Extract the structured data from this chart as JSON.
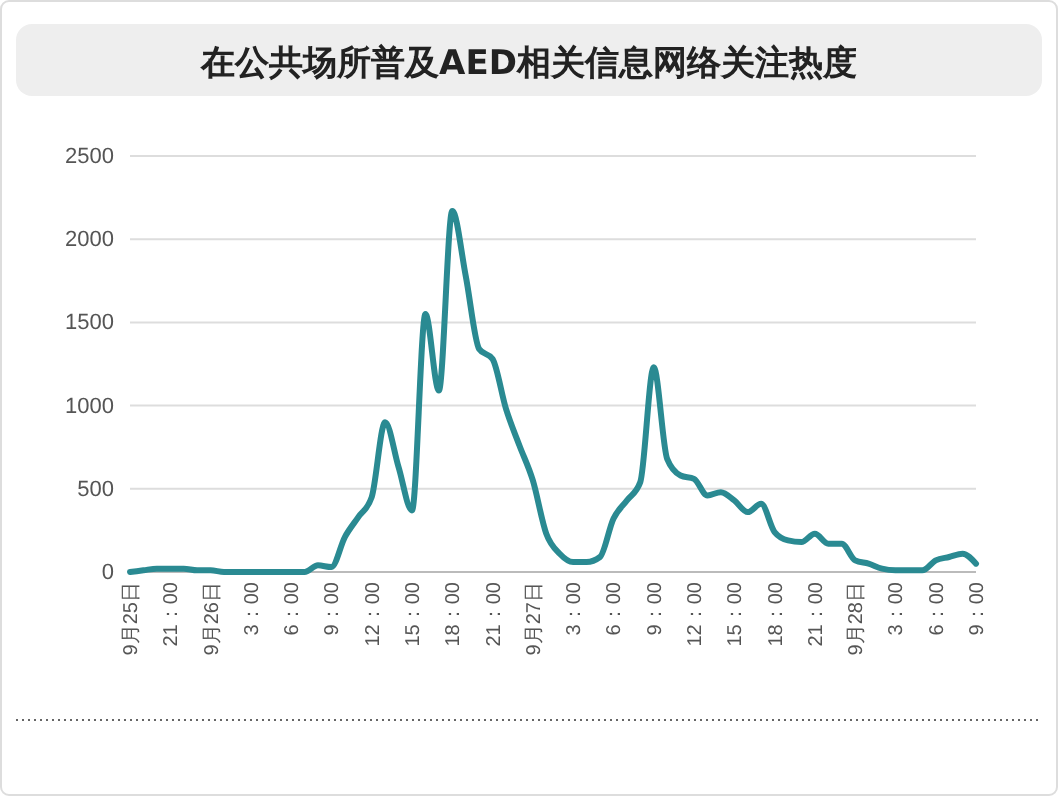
{
  "chart_data": {
    "type": "line",
    "title": "在公共场所普及AED相关信息网络关注热度",
    "categories": [
      "9月25日",
      null,
      null,
      "21：00",
      null,
      null,
      "9月26日",
      null,
      null,
      "3：00",
      null,
      null,
      "6：00",
      null,
      null,
      "9：00",
      null,
      null,
      "12：00",
      null,
      null,
      "15：00",
      null,
      null,
      "18：00",
      null,
      null,
      "21：00",
      null,
      null,
      "9月27日",
      null,
      null,
      "3：00",
      null,
      null,
      "6：00",
      null,
      null,
      "9：00",
      null,
      null,
      "12：00",
      null,
      null,
      "15：00",
      null,
      null,
      "18：00",
      null,
      null,
      "21：00",
      null,
      null,
      "9月28日",
      null,
      null,
      "3：00",
      null,
      null,
      "6：00",
      null,
      null,
      "9：00"
    ],
    "series": [
      {
        "color": "#2a8a92",
        "values": [
          0,
          10,
          20,
          20,
          20,
          10,
          10,
          0,
          0,
          0,
          0,
          0,
          0,
          0,
          40,
          30,
          210,
          330,
          450,
          900,
          630,
          370,
          1550,
          1090,
          2170,
          1780,
          1340,
          1280,
          980,
          760,
          550,
          230,
          110,
          60,
          60,
          90,
          320,
          430,
          540,
          1230,
          680,
          580,
          560,
          460,
          480,
          430,
          360,
          410,
          240,
          190,
          180,
          230,
          170,
          170,
          70,
          50,
          20,
          10,
          10,
          10,
          70,
          90,
          110,
          50
        ]
      }
    ],
    "ylim": [
      0,
      2500
    ],
    "yticks": [
      0,
      500,
      1000,
      1500,
      2000,
      2500
    ],
    "grid": "y",
    "marker": "none",
    "line_style": "solid"
  }
}
